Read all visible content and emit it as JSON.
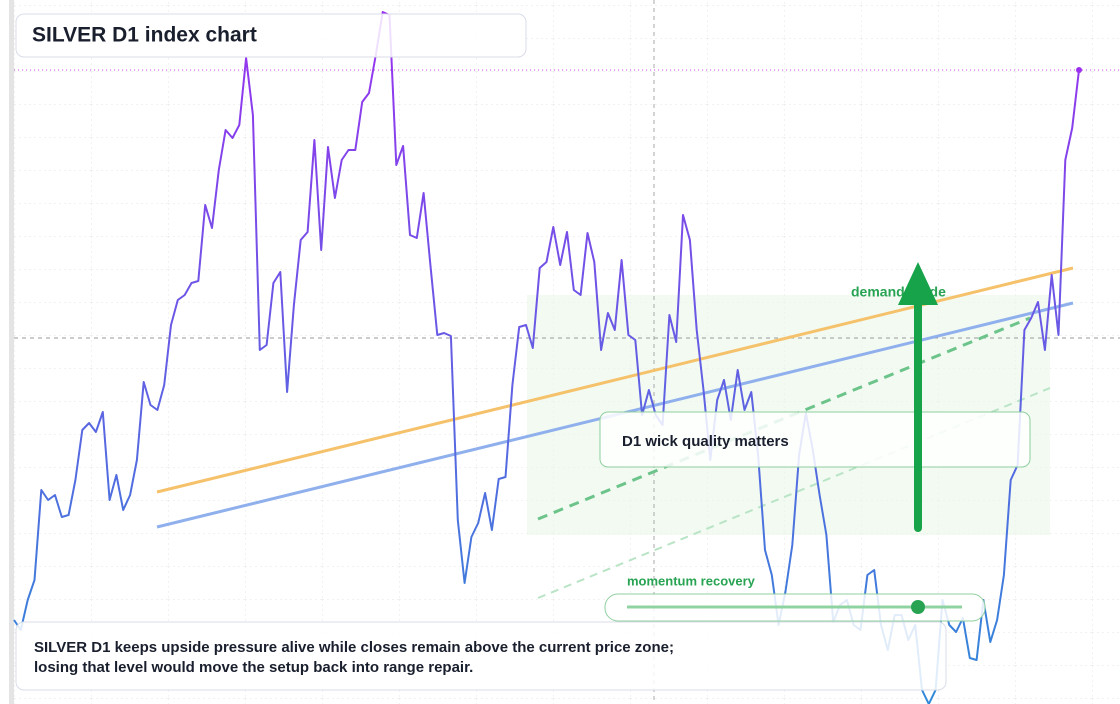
{
  "chart_data": {
    "type": "line",
    "title": "SILVER D1 index chart",
    "ylim": [
      0,
      704
    ],
    "gradient": [
      "#9b2ff0",
      "#2f8ad8"
    ],
    "values": [
      84,
      74,
      104,
      124,
      214,
      204,
      209,
      187,
      189,
      224,
      274,
      281,
      272,
      292,
      204,
      229,
      194,
      209,
      244,
      322,
      299,
      294,
      319,
      379,
      404,
      409,
      421,
      423,
      499,
      476,
      534,
      574,
      566,
      579,
      646,
      589,
      354,
      359,
      421,
      432,
      312,
      399,
      464,
      472,
      564,
      454,
      557,
      506,
      544,
      554,
      554,
      602,
      611,
      649,
      692,
      689,
      539,
      558,
      469,
      466,
      511,
      439,
      369,
      371,
      368,
      184,
      121,
      167,
      181,
      211,
      174,
      225,
      227,
      319,
      377,
      379,
      356,
      436,
      442,
      477,
      439,
      472,
      414,
      409,
      471,
      442,
      354,
      391,
      374,
      444,
      369,
      364,
      289,
      314,
      289,
      279,
      389,
      362,
      489,
      464,
      374,
      314,
      244,
      304,
      324,
      284,
      334,
      294,
      312,
      249,
      154,
      129,
      79,
      112,
      159,
      249,
      291,
      254,
      209,
      169,
      82,
      99,
      104,
      79,
      74,
      129,
      134,
      79,
      54,
      89,
      89,
      64,
      79,
      14,
      0,
      14,
      104,
      79,
      72,
      86,
      46,
      44,
      104,
      62,
      84,
      129,
      224,
      239,
      374,
      386,
      402,
      354,
      429,
      369,
      544,
      576,
      634
    ],
    "annotations": {
      "demand": "demand guide",
      "wick": "D1 wick quality matters",
      "momentum": "momentum recovery"
    },
    "note": [
      "SILVER D1 keeps upside pressure alive while closes remain above the current price zone;",
      "losing that level would move the setup back into range repair."
    ]
  }
}
